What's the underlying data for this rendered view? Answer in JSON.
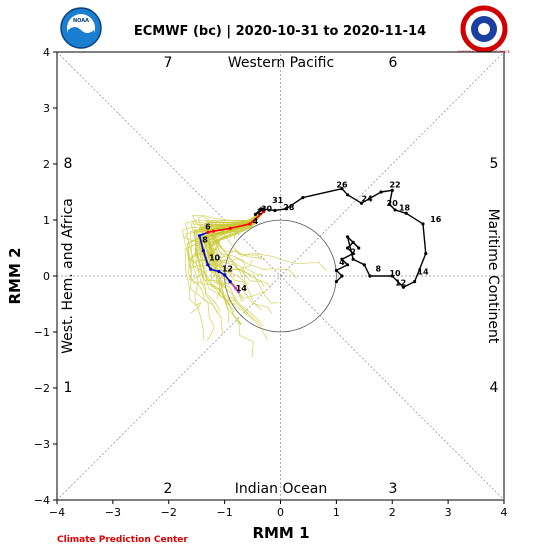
{
  "header": {
    "title": "ECMWF (bc) | 2020-10-31 to 2020-11-14",
    "left_logo_text": "NOAA",
    "right_logo_text": "NATIONAL WEATHER SERVICE"
  },
  "footer": {
    "credit": "Climate Prediction Center"
  },
  "phases": {
    "p1": "1",
    "p2": "2",
    "p3": "3",
    "p4": "4",
    "p5": "5",
    "p6": "6",
    "p7": "7",
    "p8": "8"
  },
  "regions": {
    "top": "Western Pacific",
    "bottom": "Indian Ocean",
    "left": "West. Hem. and Africa",
    "right": "Maritime Continent"
  },
  "colors": {
    "observed": "#000000",
    "ensemble": "#c8c832",
    "forecast_week1": "#ff0000",
    "forecast_week2": "#0000cc",
    "forecast_tail": "#cc33cc"
  },
  "chart_data": {
    "type": "line",
    "xlabel": "RMM 1",
    "ylabel": "RMM 2",
    "xlim": [
      -4,
      4
    ],
    "ylim": [
      -4,
      4
    ],
    "xticks": [
      "−4",
      "−3",
      "−2",
      "−1",
      "0",
      "1",
      "2",
      "3",
      "4"
    ],
    "yticks": [
      "−4",
      "−3",
      "−2",
      "−1",
      "0",
      "1",
      "2",
      "3",
      "4"
    ],
    "unit_circle_radius": 1,
    "grid": "diagonal and axis dashed lines",
    "series": [
      {
        "role": "observed",
        "points": [
          [
            1.0,
            -0.1
          ],
          [
            1.1,
            0.0
          ],
          [
            1.0,
            0.1
          ],
          [
            1.2,
            0.2
          ],
          [
            1.1,
            0.3
          ],
          [
            1.3,
            0.4
          ],
          [
            1.2,
            0.5
          ],
          [
            1.3,
            0.6
          ],
          [
            1.4,
            0.5
          ],
          [
            1.2,
            0.7
          ],
          [
            1.3,
            0.3
          ],
          [
            1.5,
            0.2
          ],
          [
            1.6,
            0.0
          ],
          [
            2.0,
            0.0
          ],
          [
            2.2,
            -0.2
          ],
          [
            2.4,
            -0.1
          ],
          [
            2.6,
            0.4
          ],
          [
            2.55,
            0.93
          ],
          [
            2.25,
            1.12
          ],
          [
            2.05,
            1.18
          ],
          [
            1.95,
            1.28
          ],
          [
            2.0,
            1.53
          ],
          [
            1.8,
            1.5
          ],
          [
            1.45,
            1.3
          ],
          [
            1.2,
            1.45
          ],
          [
            1.1,
            1.56
          ],
          [
            0.4,
            1.4
          ],
          [
            0.1,
            1.2
          ],
          [
            -0.1,
            1.17
          ],
          [
            -0.35,
            1.2
          ],
          [
            -0.45,
            1.1
          ],
          [
            -0.3,
            1.2
          ]
        ],
        "day_labels": [
          {
            "label": "8",
            "x": 1.7,
            "y": 0.08
          },
          {
            "label": "10",
            "x": 1.95,
            "y": 0.0
          },
          {
            "label": "12",
            "x": 2.05,
            "y": -0.17
          },
          {
            "label": "14",
            "x": 2.45,
            "y": 0.03
          },
          {
            "label": "16",
            "x": 2.68,
            "y": 0.96
          },
          {
            "label": "18",
            "x": 2.12,
            "y": 1.17
          },
          {
            "label": "20",
            "x": 1.9,
            "y": 1.25
          },
          {
            "label": "22",
            "x": 1.95,
            "y": 1.58
          },
          {
            "label": "24",
            "x": 1.45,
            "y": 1.33
          },
          {
            "label": "26",
            "x": 1.0,
            "y": 1.58
          },
          {
            "label": "28",
            "x": 0.05,
            "y": 1.18
          },
          {
            "label": "30",
            "x": -0.35,
            "y": 1.15
          },
          {
            "label": "31",
            "x": -0.15,
            "y": 1.3
          },
          {
            "label": "2",
            "x": 1.25,
            "y": 0.38
          },
          {
            "label": "4",
            "x": 1.05,
            "y": 0.2
          }
        ]
      },
      {
        "role": "ensemble_mean_forecast",
        "points": [
          [
            -0.3,
            1.15
          ],
          [
            -0.55,
            0.93
          ],
          [
            -0.9,
            0.85
          ],
          [
            -1.2,
            0.8
          ],
          [
            -1.3,
            0.78
          ],
          [
            -1.45,
            0.72
          ],
          [
            -1.38,
            0.45
          ],
          [
            -1.3,
            0.2
          ],
          [
            -1.25,
            0.12
          ],
          [
            -1.1,
            0.08
          ],
          [
            -1.0,
            0.02
          ],
          [
            -0.9,
            -0.1
          ],
          [
            -0.8,
            -0.22
          ],
          [
            -0.75,
            -0.28
          ]
        ],
        "day_labels": [
          {
            "label": "2",
            "x": -0.42,
            "y": 1.1
          },
          {
            "label": "4",
            "x": -0.5,
            "y": 0.93
          },
          {
            "label": "6",
            "x": -1.35,
            "y": 0.83
          },
          {
            "label": "8",
            "x": -1.4,
            "y": 0.6
          },
          {
            "label": "10",
            "x": -1.28,
            "y": 0.28
          },
          {
            "label": "12",
            "x": -1.05,
            "y": 0.08
          },
          {
            "label": "14",
            "x": -0.8,
            "y": -0.27
          }
        ]
      }
    ]
  }
}
